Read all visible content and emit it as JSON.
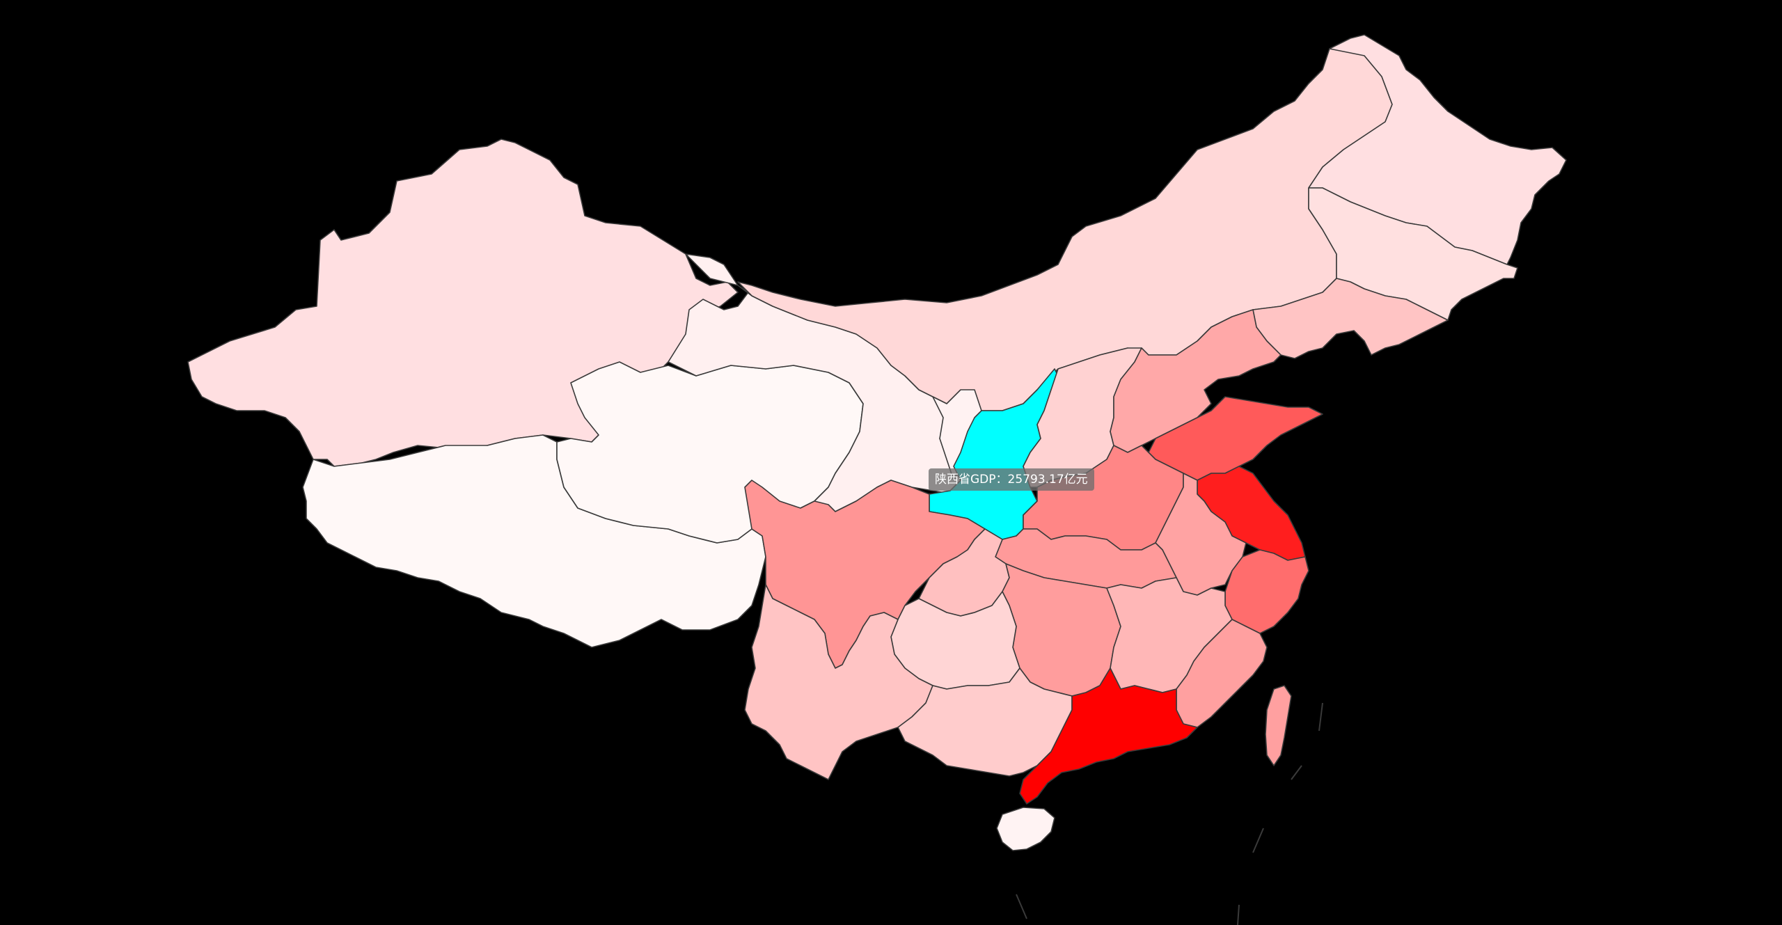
{
  "map": {
    "background": "#000000",
    "hover_color": "#00ffff",
    "scale_colors": [
      "#fff8f7",
      "#ffd8d8",
      "#ff9090",
      "#ff0000"
    ],
    "regions": [
      {
        "name": "新疆",
        "fill": "#ffdfe1"
      },
      {
        "name": "西藏",
        "fill": "#fff8f7"
      },
      {
        "name": "青海",
        "fill": "#fff8f7"
      },
      {
        "name": "甘肃",
        "fill": "#fff0f0"
      },
      {
        "name": "内蒙古",
        "fill": "#ffd8d8"
      },
      {
        "name": "宁夏",
        "fill": "#fff2f2"
      },
      {
        "name": "陕西",
        "fill": "#00ffff",
        "hovered": true
      },
      {
        "name": "山西",
        "fill": "#ffd2d2"
      },
      {
        "name": "黑龙江",
        "fill": "#ffdfe1"
      },
      {
        "name": "吉林",
        "fill": "#ffe0e0"
      },
      {
        "name": "辽宁",
        "fill": "#ffc4c4"
      },
      {
        "name": "河北",
        "fill": "#ffa8a8"
      },
      {
        "name": "山东",
        "fill": "#ff5a5a"
      },
      {
        "name": "河南",
        "fill": "#ff8686"
      },
      {
        "name": "江苏",
        "fill": "#ff1e1e"
      },
      {
        "name": "安徽",
        "fill": "#ffa3a3"
      },
      {
        "name": "浙江",
        "fill": "#ff6d6d"
      },
      {
        "name": "湖北",
        "fill": "#ff9a9a"
      },
      {
        "name": "四川",
        "fill": "#ff9595"
      },
      {
        "name": "重庆",
        "fill": "#ffc0c0"
      },
      {
        "name": "湖南",
        "fill": "#ff9d9d"
      },
      {
        "name": "江西",
        "fill": "#ffb7b7"
      },
      {
        "name": "福建",
        "fill": "#ffa0a0"
      },
      {
        "name": "贵州",
        "fill": "#ffd5d5"
      },
      {
        "name": "云南",
        "fill": "#ffc4c4"
      },
      {
        "name": "广西",
        "fill": "#ffcccc"
      },
      {
        "name": "广东",
        "fill": "#ff0000"
      },
      {
        "name": "海南",
        "fill": "#fff3f3"
      },
      {
        "name": "台湾",
        "fill": "#ffa0a0"
      }
    ]
  },
  "tooltip": {
    "text": "陕西省GDP：25793.17亿元"
  }
}
